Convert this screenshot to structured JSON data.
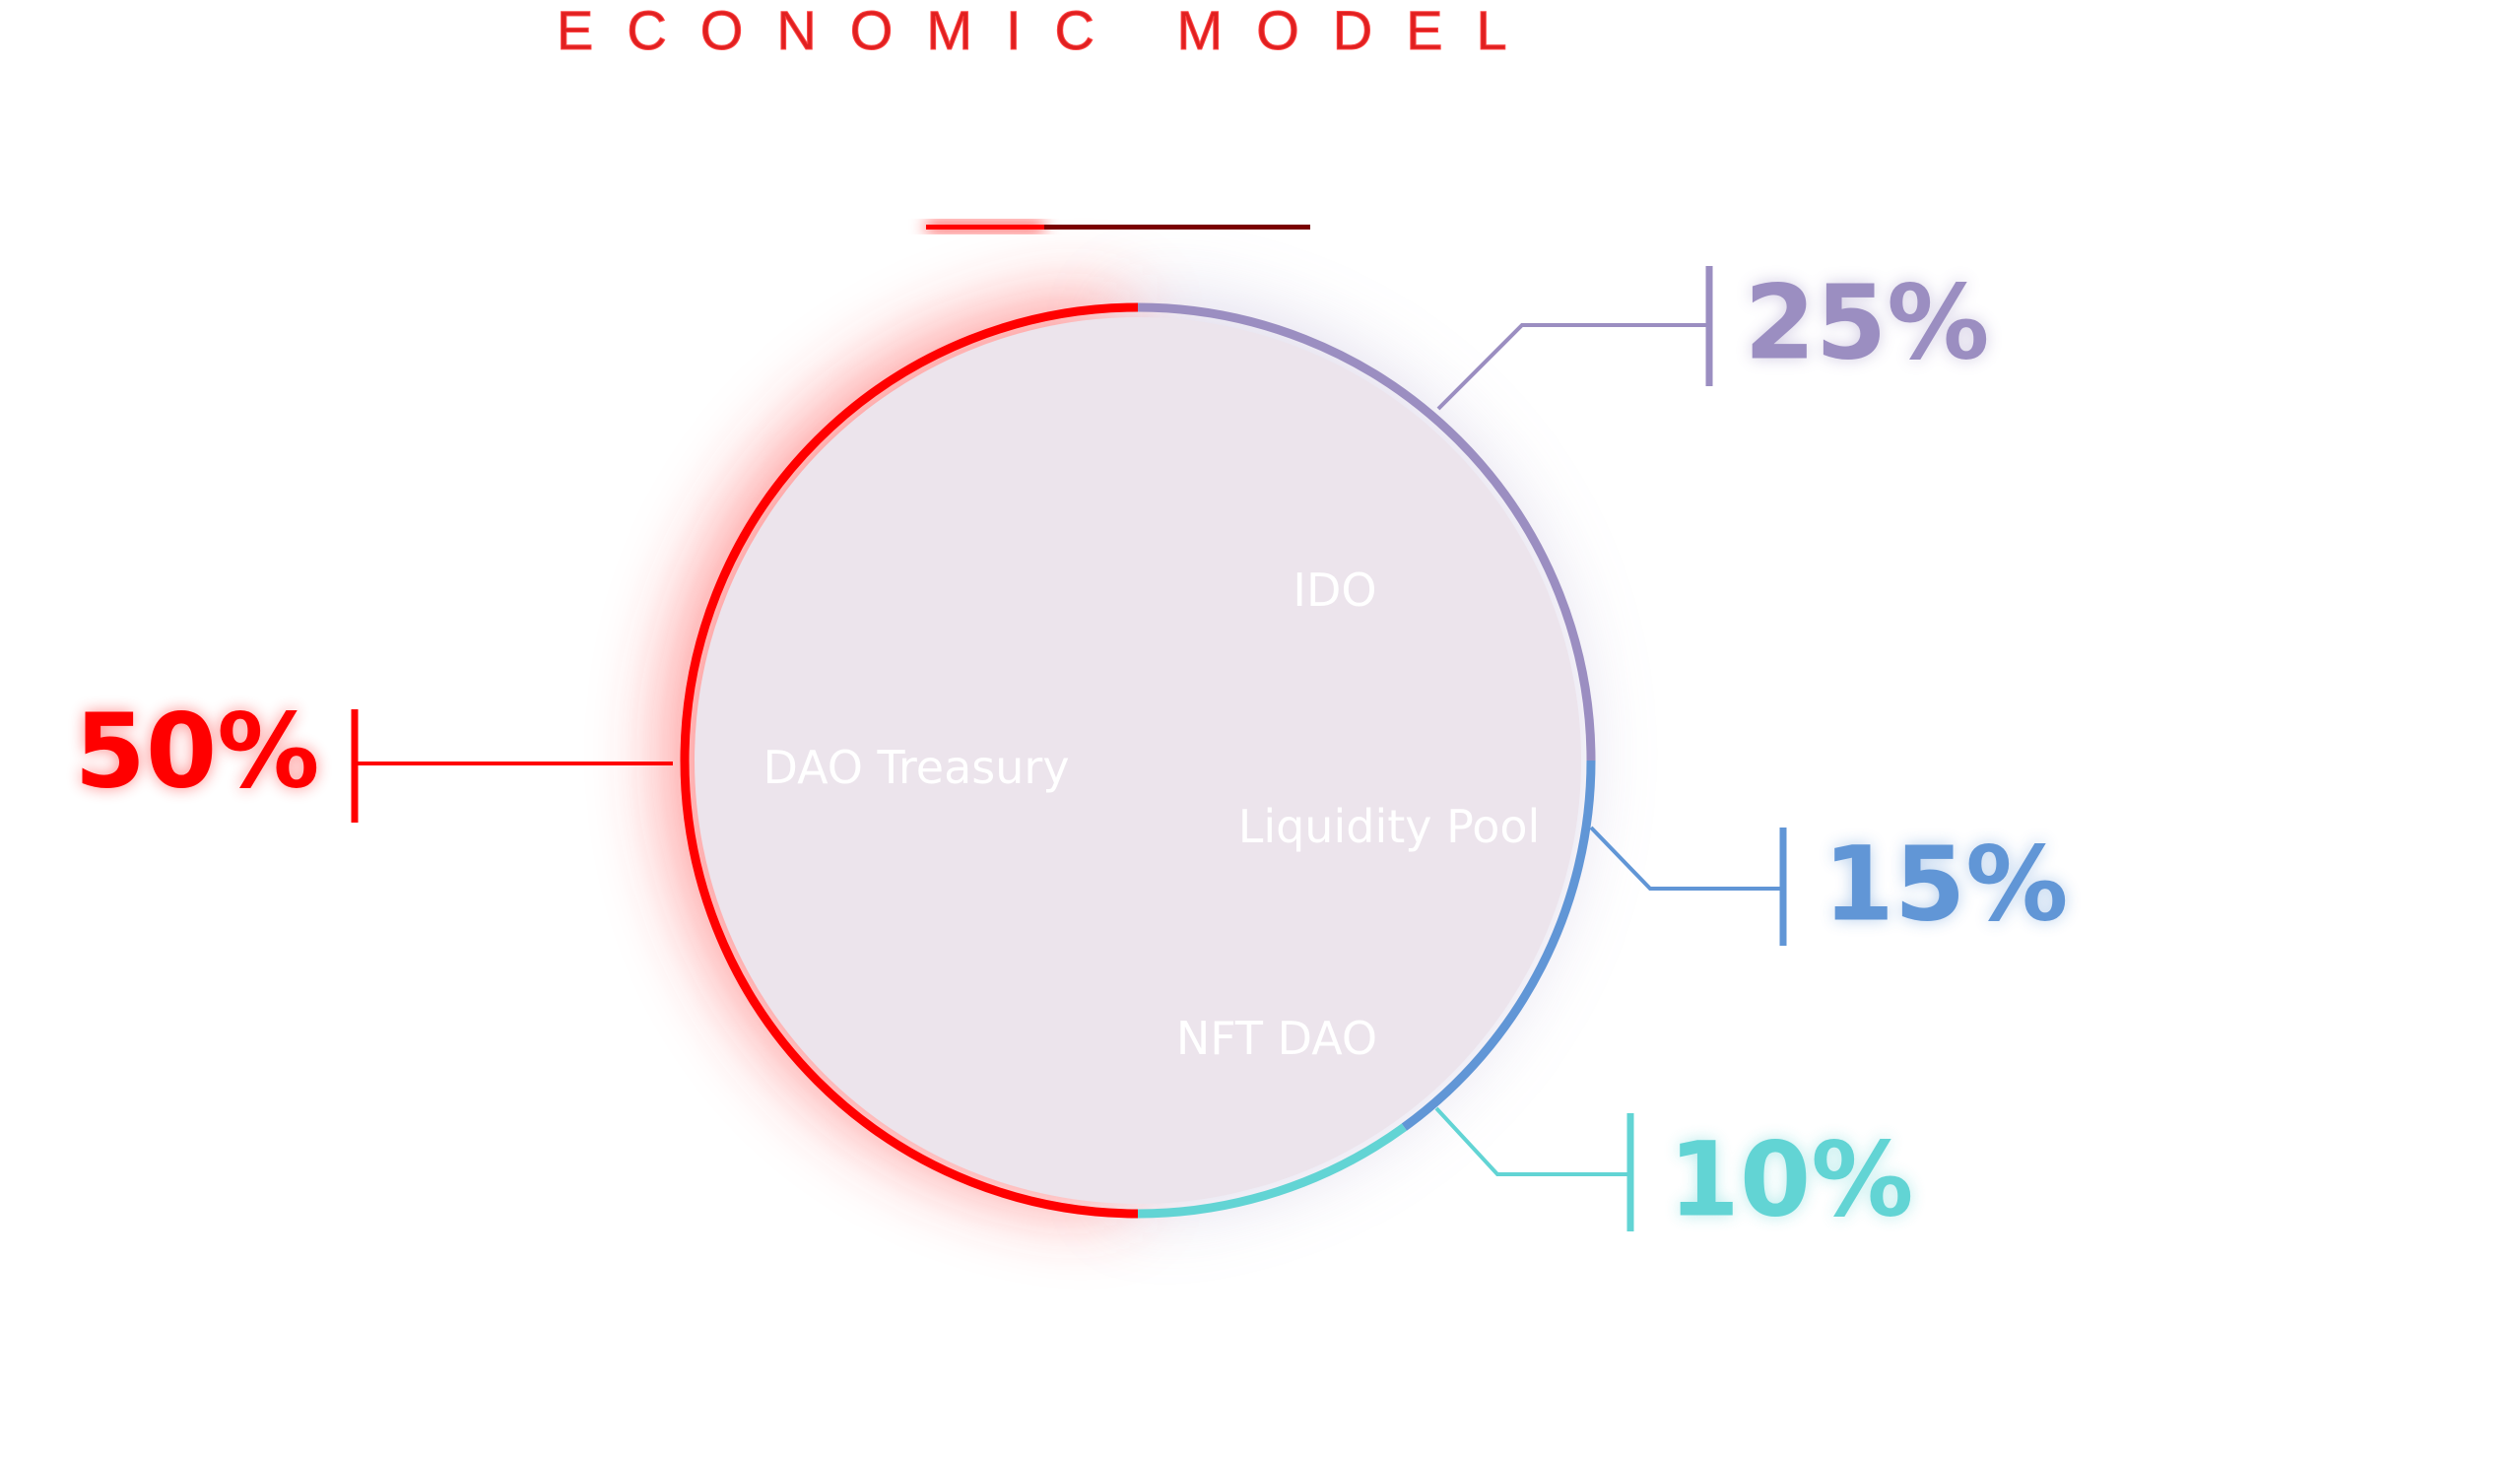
{
  "title": "ECONOMIC MODEL",
  "chart_data": {
    "type": "pie",
    "title": "ECONOMIC MODEL",
    "slices": [
      {
        "label": "DAO Treasury",
        "value": 50,
        "percent_label": "50%",
        "color": "#ff0000"
      },
      {
        "label": "IDO",
        "value": 25,
        "percent_label": "25%",
        "color": "#9b8ec1"
      },
      {
        "label": "Liquidity Pool",
        "value": 15,
        "percent_label": "15%",
        "color": "#6196d6"
      },
      {
        "label": "NFT DAO",
        "value": 10,
        "percent_label": "10%",
        "color": "#62d4d4"
      }
    ],
    "legend": "none"
  },
  "colors": {
    "accent_red": "#ff0000",
    "dark_red": "#7a0000",
    "background": "#ffffff"
  }
}
